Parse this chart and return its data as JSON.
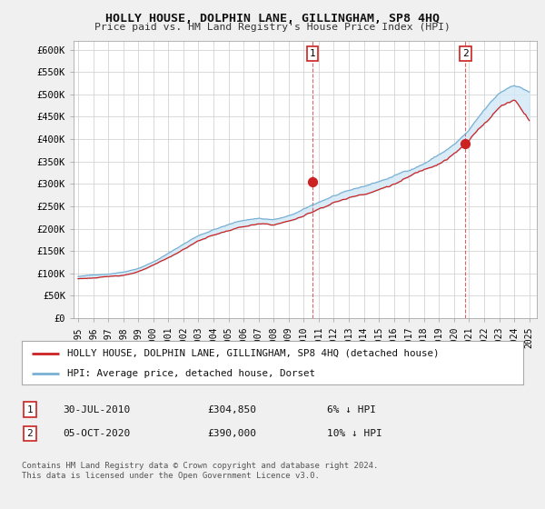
{
  "title": "HOLLY HOUSE, DOLPHIN LANE, GILLINGHAM, SP8 4HQ",
  "subtitle": "Price paid vs. HM Land Registry's House Price Index (HPI)",
  "ylabel_ticks": [
    "£0",
    "£50K",
    "£100K",
    "£150K",
    "£200K",
    "£250K",
    "£300K",
    "£350K",
    "£400K",
    "£450K",
    "£500K",
    "£550K",
    "£600K"
  ],
  "ylim": [
    0,
    620000
  ],
  "ytick_vals": [
    0,
    50000,
    100000,
    150000,
    200000,
    250000,
    300000,
    350000,
    400000,
    450000,
    500000,
    550000,
    600000
  ],
  "hpi_color": "#7ab0d4",
  "price_color": "#cc2222",
  "fill_color": "#d0e8f5",
  "background_color": "#f0f0f0",
  "plot_bg_color": "#ffffff",
  "legend_label_price": "HOLLY HOUSE, DOLPHIN LANE, GILLINGHAM, SP8 4HQ (detached house)",
  "legend_label_hpi": "HPI: Average price, detached house, Dorset",
  "annotation1_label": "1",
  "annotation1_date": "30-JUL-2010",
  "annotation1_price": "£304,850",
  "annotation1_note": "6% ↓ HPI",
  "annotation1_year": 2010.58,
  "annotation1_value": 304850,
  "annotation2_label": "2",
  "annotation2_date": "05-OCT-2020",
  "annotation2_price": "£390,000",
  "annotation2_note": "10% ↓ HPI",
  "annotation2_year": 2020.75,
  "annotation2_value": 390000,
  "footer": "Contains HM Land Registry data © Crown copyright and database right 2024.\nThis data is licensed under the Open Government Licence v3.0.",
  "x_start_year": 1995,
  "x_end_year": 2025
}
